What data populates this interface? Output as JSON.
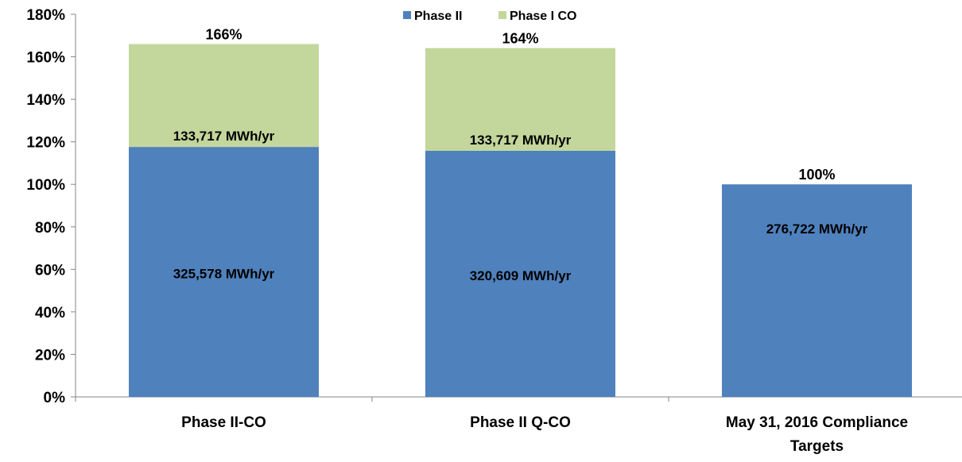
{
  "chart_data": {
    "type": "bar",
    "stacked": true,
    "categories": [
      [
        "Phase II-CO"
      ],
      [
        "Phase II Q-CO"
      ],
      [
        "May 31, 2016 Compliance",
        "Targets"
      ]
    ],
    "series": [
      {
        "name": "Phase II",
        "color": "#4F81BD",
        "values": [
          117.6,
          115.8,
          100
        ],
        "labels": [
          "325,578 MWh/yr",
          "320,609 MWh/yr",
          "276,722 MWh/yr"
        ]
      },
      {
        "name": "Phase I CO",
        "color": "#C3D69B",
        "values": [
          48.4,
          48.3,
          0
        ],
        "labels": [
          "133,717 MWh/yr",
          "133,717 MWh/yr",
          ""
        ]
      }
    ],
    "totals": [
      "166%",
      "164%",
      "100%"
    ],
    "yticks": [
      "0%",
      "20%",
      "40%",
      "60%",
      "80%",
      "100%",
      "120%",
      "140%",
      "160%",
      "180%"
    ],
    "ylim": [
      0,
      180
    ],
    "grid": false,
    "legend_position": "top-center"
  }
}
